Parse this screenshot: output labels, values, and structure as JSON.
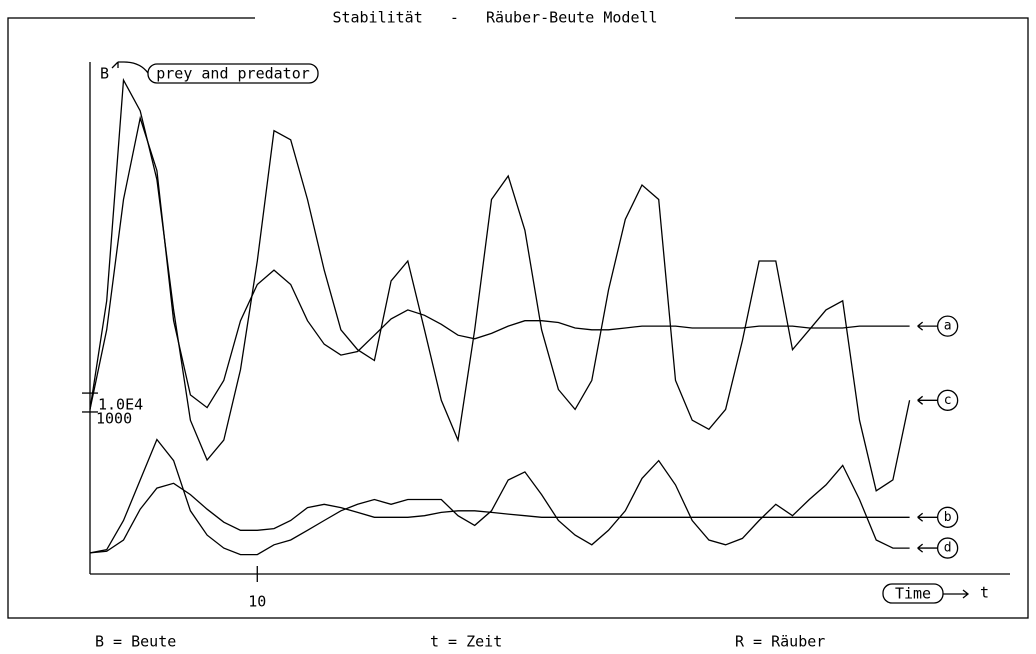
{
  "chart_data": {
    "type": "line",
    "title": "Stabilität   -   Räuber-Beute Modell",
    "y_label": "B",
    "y_annotation": "prey and predator",
    "x_annotation": "Time",
    "x_label": "t",
    "notes": [
      "B = Beute",
      "t = Zeit",
      "R = Räuber"
    ],
    "x": [
      0,
      1,
      2,
      3,
      4,
      5,
      6,
      7,
      8,
      9,
      10,
      11,
      12,
      13,
      14,
      15,
      16,
      17,
      18,
      19,
      20,
      21,
      22,
      23,
      24,
      25,
      26,
      27,
      28,
      29,
      30,
      31,
      32,
      33,
      34,
      35,
      36,
      37,
      38,
      39,
      40,
      41,
      42,
      43,
      44,
      45,
      46,
      47,
      48,
      49
    ],
    "xlim": [
      0,
      55
    ],
    "xticks": [
      10
    ],
    "ylim": [
      0,
      28300
    ],
    "yticks": [
      {
        "value": 10000,
        "label": "1.0E4"
      }
    ],
    "y2lim": [
      0,
      3160
    ],
    "y2ticks": [
      1000
    ],
    "series": [
      {
        "name": "a",
        "color": "#000000",
        "values": [
          9100,
          13500,
          20700,
          25200,
          22300,
          14000,
          9900,
          9200,
          10700,
          14000,
          16000,
          16800,
          16000,
          14000,
          12700,
          12100,
          12300,
          13200,
          14100,
          14600,
          14300,
          13800,
          13200,
          13000,
          13300,
          13700,
          14000,
          14000,
          13900,
          13600,
          13500,
          13500,
          13600,
          13700,
          13700,
          13700,
          13600,
          13600,
          13600,
          13600,
          13700,
          13700,
          13700,
          13600,
          13600,
          13600,
          13700,
          13700,
          13700,
          13700
        ]
      },
      {
        "name": "b",
        "color": "#000000",
        "axis": "y2",
        "values": [
          130,
          140,
          210,
          400,
          530,
          560,
          490,
          400,
          320,
          270,
          270,
          280,
          330,
          410,
          430,
          410,
          380,
          350,
          350,
          350,
          360,
          380,
          390,
          390,
          380,
          370,
          360,
          350,
          350,
          350,
          350,
          350,
          350,
          350,
          350,
          350,
          350,
          350,
          350,
          350,
          350,
          350,
          350,
          350,
          350,
          350,
          350,
          350,
          350,
          350
        ]
      },
      {
        "name": "c",
        "color": "#000000",
        "values": [
          9100,
          15100,
          27300,
          25600,
          21800,
          14600,
          8500,
          6300,
          7400,
          11300,
          17300,
          24500,
          24000,
          20700,
          16800,
          13500,
          12400,
          11800,
          16200,
          17300,
          13500,
          9600,
          7400,
          13500,
          20700,
          22000,
          19000,
          13500,
          10200,
          9100,
          10700,
          15700,
          19600,
          21500,
          20700,
          10700,
          8500,
          8000,
          9100,
          12900,
          17300,
          17300,
          12400,
          13500,
          14600,
          15100,
          8500,
          4600,
          5200,
          9600
        ]
      },
      {
        "name": "d",
        "color": "#000000",
        "axis": "y2",
        "values": [
          130,
          150,
          330,
          580,
          830,
          700,
          390,
          240,
          160,
          120,
          120,
          180,
          210,
          270,
          330,
          390,
          430,
          460,
          430,
          460,
          460,
          460,
          360,
          300,
          390,
          580,
          630,
          490,
          330,
          240,
          180,
          270,
          390,
          590,
          700,
          550,
          330,
          210,
          180,
          220,
          330,
          430,
          360,
          460,
          550,
          670,
          460,
          210,
          160,
          160
        ]
      }
    ]
  }
}
